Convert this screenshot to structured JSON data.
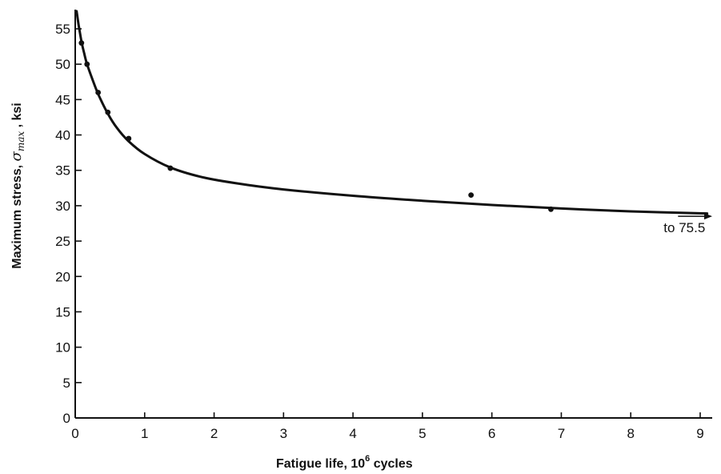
{
  "chart_data": {
    "type": "scatter",
    "title": "",
    "xlabel": {
      "text": "Fatigue life, 10",
      "superscript": "6",
      "suffix": " cycles"
    },
    "ylabel": {
      "text": "Maximum stress, ",
      "symbol": "σ",
      "subscript": "max",
      "suffix": " , ksi"
    },
    "xlim": [
      0,
      9.3
    ],
    "ylim": [
      0,
      57
    ],
    "xticks": [
      0,
      1,
      2,
      3,
      4,
      5,
      6,
      7,
      8,
      9
    ],
    "yticks": [
      0,
      5,
      10,
      15,
      20,
      25,
      30,
      35,
      40,
      45,
      50,
      55
    ],
    "grid": false,
    "legend": "none",
    "colors": {
      "ink": "#111111"
    },
    "series": [
      {
        "kind": "points",
        "x": [
          0.09,
          0.17,
          0.33,
          0.47,
          0.77,
          1.37,
          5.7,
          6.85
        ],
        "y": [
          53.0,
          50.0,
          46.0,
          43.2,
          39.5,
          35.3,
          31.5,
          29.5
        ]
      },
      {
        "kind": "fitted-curve",
        "x": [
          0.02,
          0.05,
          0.09,
          0.13,
          0.17,
          0.25,
          0.33,
          0.47,
          0.6,
          0.77,
          1.0,
          1.37,
          1.8,
          2.3,
          3.0,
          4.0,
          5.0,
          6.0,
          7.0,
          8.0,
          9.1
        ],
        "y": [
          57.5,
          55.5,
          53.2,
          51.5,
          50.0,
          47.8,
          45.8,
          43.0,
          41.0,
          39.1,
          37.3,
          35.4,
          34.1,
          33.2,
          32.3,
          31.4,
          30.7,
          30.1,
          29.6,
          29.2,
          28.9
        ]
      }
    ],
    "annotations": [
      {
        "text": "to 75.5",
        "x": 8.75,
        "y": 28.5,
        "arrow": "right"
      }
    ]
  }
}
